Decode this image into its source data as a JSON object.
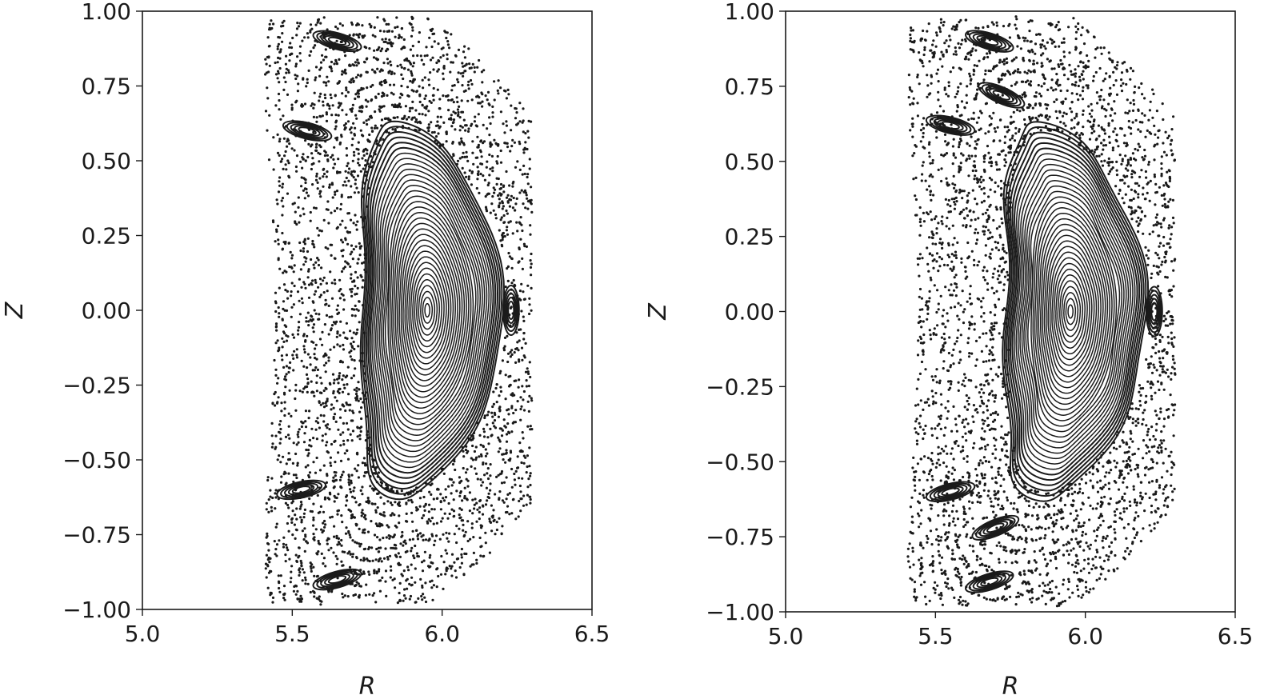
{
  "chart_data": [
    {
      "type": "scatter",
      "title": "",
      "xlabel": "R",
      "ylabel": "Z",
      "xlim": [
        5.0,
        6.5
      ],
      "ylim": [
        -1.0,
        1.0
      ],
      "xticks": [
        "5.0",
        "5.5",
        "6.0",
        "6.5"
      ],
      "yticks": [
        "−1.00",
        "−0.75",
        "−0.50",
        "−0.25",
        "0.00",
        "0.25",
        "0.50",
        "0.75",
        "1.00"
      ],
      "grid": false,
      "legend": "none",
      "marker_color": "#1a1a1a",
      "description_values": {
        "magnetic_axis": [
          5.95,
          0.0
        ],
        "inner_boundary_R_at_Z0": 5.68,
        "outer_boundary_R_at_Z0": 6.25,
        "top_Z": 0.98,
        "bottom_Z": -0.97,
        "island_chains": [
          {
            "R": 5.65,
            "Z": 0.9
          },
          {
            "R": 5.55,
            "Z": 0.6
          },
          {
            "R": 6.23,
            "Z": 0.0
          },
          {
            "R": 5.53,
            "Z": -0.6
          },
          {
            "R": 5.65,
            "Z": -0.9
          }
        ]
      }
    },
    {
      "type": "scatter",
      "title": "",
      "xlabel": "R",
      "ylabel": "Z",
      "xlim": [
        5.0,
        6.5
      ],
      "ylim": [
        -1.0,
        1.0
      ],
      "xticks": [
        "5.0",
        "5.5",
        "6.0",
        "6.5"
      ],
      "yticks": [
        "−1.00",
        "−0.75",
        "−0.50",
        "−0.25",
        "0.00",
        "0.25",
        "0.50",
        "0.75",
        "1.00"
      ],
      "grid": false,
      "legend": "none",
      "marker_color": "#1a1a1a",
      "description_values": {
        "magnetic_axis": [
          5.95,
          0.0
        ],
        "inner_boundary_R_at_Z0": 5.7,
        "outer_boundary_R_at_Z0": 6.26,
        "top_Z": 0.99,
        "bottom_Z": -0.97,
        "island_chains": [
          {
            "R": 5.68,
            "Z": 0.9
          },
          {
            "R": 5.55,
            "Z": 0.62
          },
          {
            "R": 5.72,
            "Z": 0.72
          },
          {
            "R": 6.23,
            "Z": 0.0
          },
          {
            "R": 5.55,
            "Z": -0.6
          },
          {
            "R": 5.7,
            "Z": -0.72
          },
          {
            "R": 5.68,
            "Z": -0.9
          }
        ]
      }
    }
  ]
}
